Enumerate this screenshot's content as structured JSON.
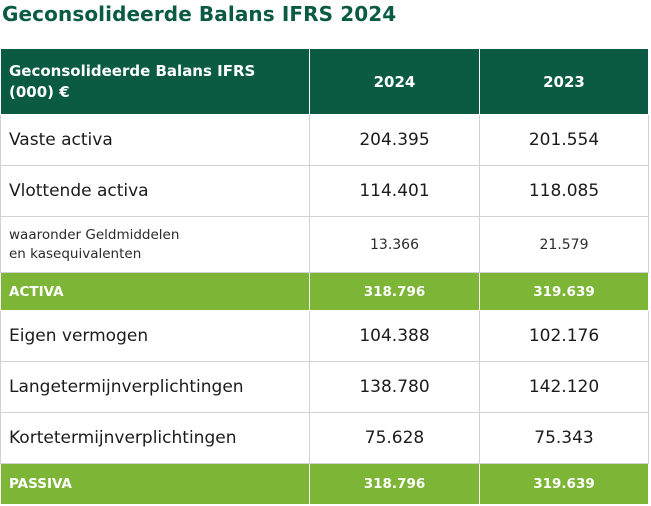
{
  "page_title": "Geconsolideerde Balans IFRS 2024",
  "table": {
    "header": {
      "label_line1": "Geconsolideerde Balans IFRS",
      "label_line2": "(000) €",
      "year_1": "2024",
      "year_2": "2023"
    },
    "rows": [
      {
        "label": "Vaste activa",
        "v2024": "204.395",
        "v2023": "201.554"
      },
      {
        "label": "Vlottende activa",
        "v2024": "114.401",
        "v2023": "118.085"
      },
      {
        "label_line1": "waaronder Geldmiddelen",
        "label_line2": "en kasequivalenten",
        "v2024": "13.366",
        "v2023": "21.579"
      },
      {
        "label": "ACTIVA",
        "v2024": "318.796",
        "v2023": "319.639"
      },
      {
        "label": "Eigen vermogen",
        "v2024": "104.388",
        "v2023": "102.176"
      },
      {
        "label": "Langetermijnverplichtingen",
        "v2024": "138.780",
        "v2023": "142.120"
      },
      {
        "label": "Kortetermijnverplichtingen",
        "v2024": "75.628",
        "v2023": "75.343"
      },
      {
        "label": "PASSIVA",
        "v2024": "318.796",
        "v2023": "319.639"
      }
    ]
  },
  "colors": {
    "header_bg": "#0b5a44",
    "total_bg": "#7db536",
    "title_color": "#0b5a44"
  }
}
